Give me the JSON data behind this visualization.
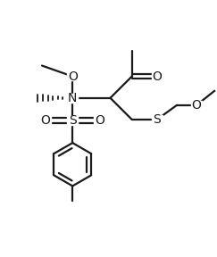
{
  "bg_color": "#ffffff",
  "line_color": "#1a1a1a",
  "line_width": 1.6,
  "font_size": 10,
  "figsize": [
    2.43,
    2.88
  ],
  "dpi": 100,
  "xlim": [
    -0.05,
    1.15
  ],
  "ylim": [
    -0.02,
    1.08
  ]
}
